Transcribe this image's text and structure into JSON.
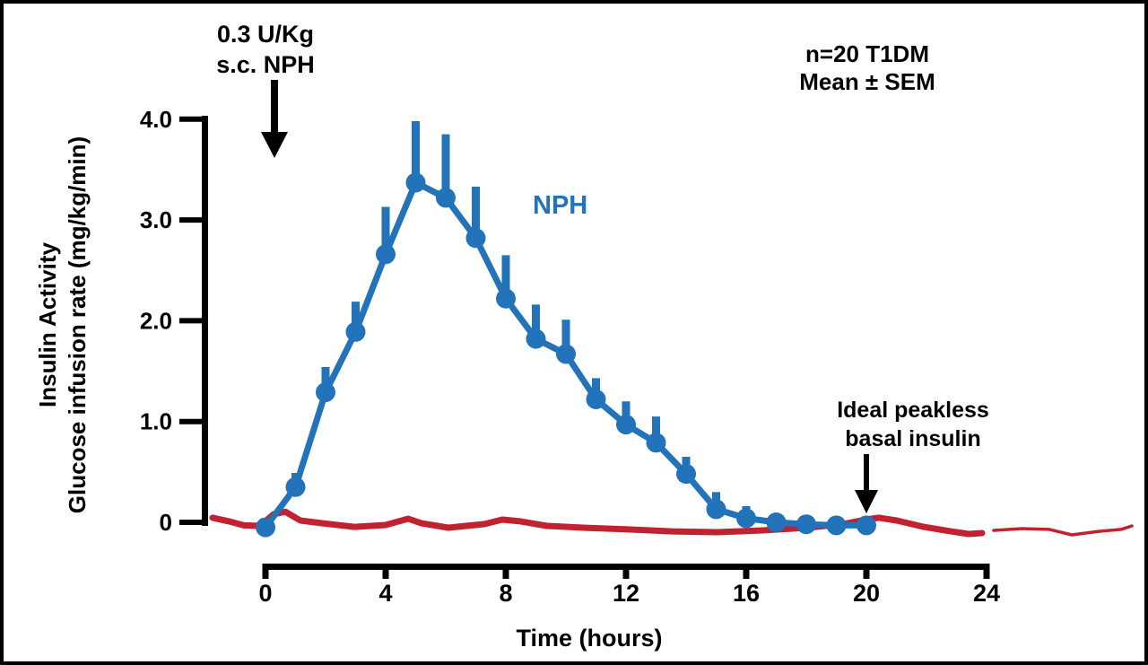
{
  "chart_data": {
    "type": "line",
    "title": "",
    "xlabel": "Time (hours)",
    "ylabel_lines": [
      "Insulin Activity",
      "Glucose infusion rate (mg/kg/min)"
    ],
    "xlim": [
      0,
      24
    ],
    "ylim": [
      0,
      4.0
    ],
    "x_ticks": [
      0,
      4,
      8,
      12,
      16,
      20,
      24
    ],
    "x_tick_labels": [
      "0",
      "4",
      "8",
      "12",
      "16",
      "20",
      "24"
    ],
    "y_ticks": [
      0,
      1.0,
      2.0,
      3.0,
      4.0
    ],
    "y_tick_labels": [
      "0",
      "1.0",
      "2.0",
      "3.0",
      "4.0"
    ],
    "grid": false,
    "legend_position": "inline-labels",
    "annotations": {
      "injection": {
        "line1": "0.3 U/Kg",
        "line2": "s.c. NPH",
        "arrow_points_to_t": 0.3
      },
      "cohort": {
        "line1": "n=20 T1DM",
        "line2": "Mean ± SEM"
      },
      "nph_label": "NPH",
      "basal": {
        "line1": "Ideal peakless",
        "line2": "basal insulin",
        "arrow_points_to_t": 20
      }
    },
    "series": [
      {
        "name": "NPH",
        "color": "#2273B9",
        "marker": "circle",
        "error_bars": "SEM, upward only",
        "x": [
          0,
          1,
          2,
          3,
          4,
          5,
          6,
          7,
          8,
          9,
          10,
          11,
          12,
          13,
          14,
          15,
          16,
          17,
          18,
          19,
          20
        ],
        "y": [
          -0.05,
          0.35,
          1.29,
          1.89,
          2.66,
          3.37,
          3.22,
          2.82,
          2.22,
          1.82,
          1.67,
          1.22,
          0.97,
          0.79,
          0.48,
          0.13,
          0.04,
          0.0,
          -0.02,
          -0.03,
          -0.03
        ],
        "sem": [
          0,
          0.14,
          0.25,
          0.3,
          0.47,
          0.61,
          0.63,
          0.51,
          0.43,
          0.34,
          0.34,
          0.21,
          0.23,
          0.26,
          0.17,
          0.17,
          0.12,
          0.05,
          0,
          0,
          0
        ]
      },
      {
        "name": "Ideal peakless basal insulin",
        "color": "#C2212F",
        "style": "hand-drawn flat line near zero",
        "segments": [
          {
            "width": 7,
            "points": [
              [
                -1.76,
                0.045
              ],
              [
                -1.22,
                0.01
              ],
              [
                -0.72,
                -0.03
              ],
              [
                -0.18,
                -0.036
              ],
              [
                0.27,
                0.08
              ],
              [
                0.66,
                0.105
              ],
              [
                1.16,
                0.018
              ],
              [
                1.91,
                -0.01
              ],
              [
                2.96,
                -0.045
              ],
              [
                4.0,
                -0.027
              ],
              [
                4.75,
                0.036
              ],
              [
                5.19,
                -0.01
              ],
              [
                6.09,
                -0.053
              ],
              [
                7.28,
                -0.018
              ],
              [
                7.88,
                0.027
              ],
              [
                8.48,
                0.01
              ],
              [
                9.37,
                -0.036
              ],
              [
                10.57,
                -0.053
              ],
              [
                12.06,
                -0.07
              ],
              [
                13.55,
                -0.09
              ],
              [
                15.04,
                -0.098
              ],
              [
                16.54,
                -0.08
              ],
              [
                18.03,
                -0.053
              ],
              [
                19.22,
                -0.018
              ],
              [
                19.97,
                0.027
              ],
              [
                20.42,
                0.045
              ],
              [
                21.01,
                0.018
              ],
              [
                21.91,
                -0.045
              ],
              [
                22.81,
                -0.09
              ],
              [
                23.4,
                -0.116
              ],
              [
                23.85,
                -0.107
              ]
            ]
          },
          {
            "width": 3.5,
            "points": [
              [
                24.24,
                -0.08
              ],
              [
                25.19,
                -0.062
              ],
              [
                26.09,
                -0.07
              ],
              [
                26.84,
                -0.125
              ],
              [
                27.73,
                -0.09
              ],
              [
                28.48,
                -0.07
              ],
              [
                28.84,
                -0.036
              ]
            ]
          }
        ]
      }
    ]
  }
}
